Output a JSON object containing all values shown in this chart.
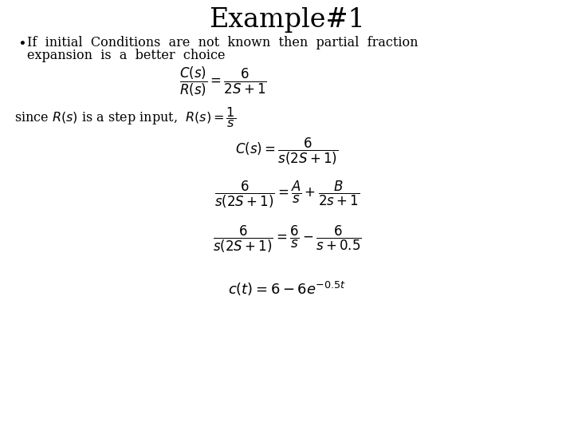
{
  "title": "Example#1",
  "title_fontsize": 24,
  "background_color": "#ffffff",
  "text_color": "#000000",
  "fs": 11.5,
  "fs_bullet": 11.5,
  "fs_eq": 12
}
